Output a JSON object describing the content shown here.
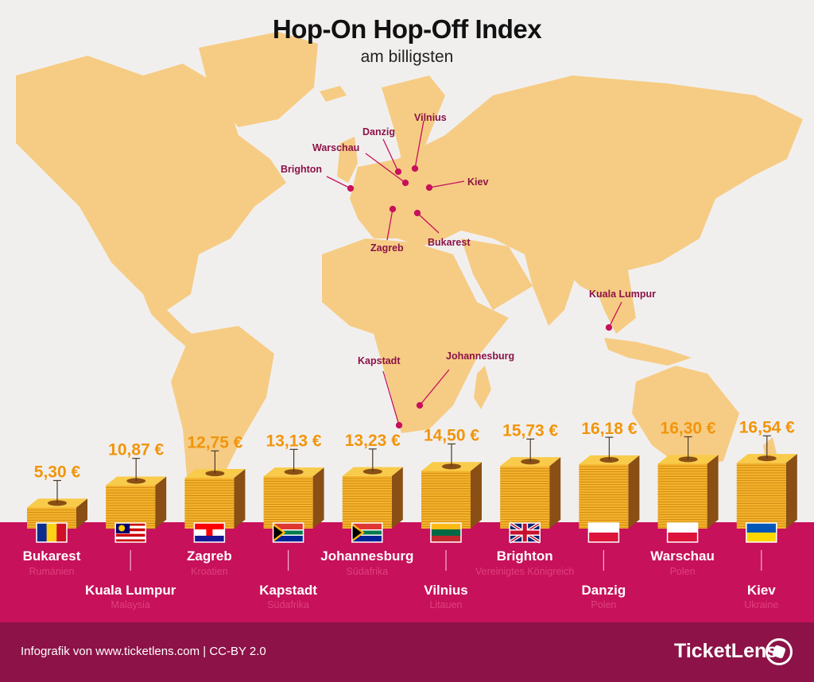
{
  "title": "Hop-On Hop-Off Index",
  "subtitle": "am billigsten",
  "map_labels": [
    "Vilnius",
    "Danzig",
    "Warschau",
    "Brighton",
    "Kiev",
    "Zagreb",
    "Bukarest",
    "Kuala Lumpur",
    "Kapstadt",
    "Johannesburg"
  ],
  "chart_data": {
    "type": "bar",
    "categories": [
      "Bukarest",
      "Kuala Lumpur",
      "Zagreb",
      "Kapstadt",
      "Johannesburg",
      "Vilnius",
      "Brighton",
      "Danzig",
      "Warschau",
      "Kiev"
    ],
    "countries": [
      "Rumänien",
      "Malaysia",
      "Kroatien",
      "Südafrika",
      "Südafrika",
      "Litauen",
      "Vereinigtes Königreich",
      "Polen",
      "Polen",
      "Ukraine"
    ],
    "values": [
      5.3,
      10.87,
      12.75,
      13.13,
      13.23,
      14.5,
      15.73,
      16.18,
      16.3,
      16.54
    ],
    "value_labels": [
      "5,30 €",
      "10,87 €",
      "12,75 €",
      "13,13 €",
      "13,23 €",
      "14,50 €",
      "15,73 €",
      "16,18 €",
      "16,30 €",
      "16,54 €"
    ],
    "flags": [
      "romania",
      "malaysia",
      "croatia",
      "south-africa",
      "south-africa",
      "lithuania",
      "united-kingdom",
      "poland",
      "poland",
      "ukraine"
    ],
    "title": "Hop-On Hop-Off Index",
    "ylabel": "",
    "ylim": [
      0,
      17
    ]
  },
  "footer": {
    "credit": "Infografik von www.ticketlens.com | CC-BY 2.0",
    "brand": "TicketLens"
  },
  "colors": {
    "background": "#f1efee",
    "land": "#f6cc84",
    "price_text": "#f1950b",
    "marker": "#c7115a",
    "band": "#c7115a",
    "footer": "#8c1247"
  }
}
